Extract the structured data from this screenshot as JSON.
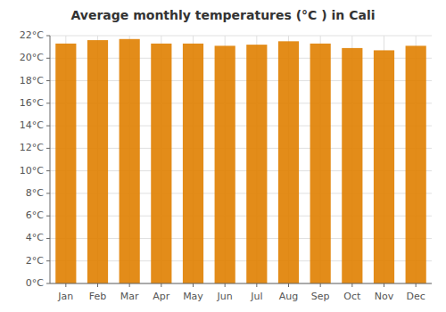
{
  "chart_data": {
    "type": "bar",
    "title": "Average monthly temperatures (°C ) in Cali",
    "categories": [
      "Jan",
      "Feb",
      "Mar",
      "Apr",
      "May",
      "Jun",
      "Jul",
      "Aug",
      "Sep",
      "Oct",
      "Nov",
      "Dec"
    ],
    "values": [
      21.3,
      21.6,
      21.7,
      21.3,
      21.3,
      21.1,
      21.2,
      21.5,
      21.3,
      20.9,
      20.7,
      21.1
    ],
    "color": "#E08000",
    "ylim": [
      0,
      22
    ],
    "yticks": [
      {
        "value": 0,
        "label": "0°C"
      },
      {
        "value": 2,
        "label": "2°C"
      },
      {
        "value": 4,
        "label": "4°C"
      },
      {
        "value": 6,
        "label": "6°C"
      },
      {
        "value": 8,
        "label": "8°C"
      },
      {
        "value": 10,
        "label": "10°C"
      },
      {
        "value": 12,
        "label": "12°C"
      },
      {
        "value": 14,
        "label": "14°C"
      },
      {
        "value": 16,
        "label": "16°C"
      },
      {
        "value": 18,
        "label": "18°C"
      },
      {
        "value": 20,
        "label": "20°C"
      },
      {
        "value": 22,
        "label": "22°C"
      }
    ],
    "grid": true
  }
}
